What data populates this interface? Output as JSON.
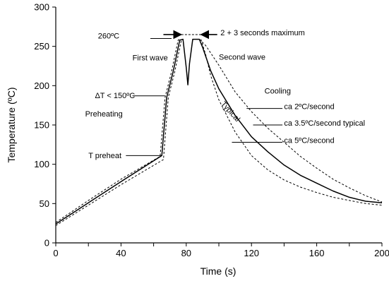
{
  "chart_data": {
    "type": "line",
    "title": "",
    "xlabel": "Time (s)",
    "ylabel": "Temperature (ºC)",
    "xlim": [
      0,
      200
    ],
    "ylim": [
      0,
      300
    ],
    "x_ticks": [
      0,
      40,
      80,
      120,
      160,
      200
    ],
    "y_ticks": [
      0,
      50,
      100,
      150,
      200,
      250,
      300
    ],
    "grid": false,
    "legend": "none",
    "series": [
      {
        "style": "solid",
        "color": "#000000",
        "points": [
          [
            0,
            24
          ],
          [
            20,
            51
          ],
          [
            40,
            78
          ],
          [
            65,
            111
          ],
          [
            68,
            185
          ],
          [
            72,
            218
          ],
          [
            76,
            258
          ],
          [
            78,
            259
          ],
          [
            80,
            223
          ],
          [
            81,
            201
          ],
          [
            82,
            228
          ],
          [
            84,
            259
          ],
          [
            88,
            259
          ],
          [
            90,
            249
          ],
          [
            95,
            219
          ],
          [
            100,
            196
          ],
          [
            110,
            162
          ],
          [
            120,
            135
          ],
          [
            130,
            116
          ],
          [
            140,
            99
          ],
          [
            150,
            86
          ],
          [
            160,
            76
          ],
          [
            170,
            66
          ],
          [
            180,
            58
          ],
          [
            190,
            53
          ],
          [
            200,
            51
          ]
        ]
      },
      {
        "style": "dashed",
        "color": "#000000",
        "points": [
          [
            0,
            26
          ],
          [
            20,
            54
          ],
          [
            40,
            81
          ],
          [
            64,
            110
          ],
          [
            67,
            185
          ],
          [
            71,
            218
          ],
          [
            75,
            258
          ],
          [
            76,
            259
          ]
        ]
      },
      {
        "style": "dashed",
        "color": "#000000",
        "points": [
          [
            0,
            22
          ],
          [
            20,
            48
          ],
          [
            40,
            74
          ],
          [
            66,
            106
          ],
          [
            69,
            185
          ],
          [
            73,
            218
          ],
          [
            77,
            258
          ],
          [
            78,
            259
          ]
        ]
      },
      {
        "style": "dashed",
        "color": "#000000",
        "points": [
          [
            89,
            259
          ],
          [
            92,
            239
          ],
          [
            95,
            213
          ],
          [
            100,
            182
          ],
          [
            110,
            141
          ],
          [
            120,
            111
          ],
          [
            130,
            93
          ],
          [
            140,
            80
          ],
          [
            150,
            71
          ],
          [
            160,
            64
          ],
          [
            170,
            58
          ],
          [
            180,
            54
          ],
          [
            190,
            50
          ],
          [
            200,
            48
          ]
        ]
      },
      {
        "style": "dashed",
        "color": "#000000",
        "points": [
          [
            88,
            259
          ],
          [
            92,
            251
          ],
          [
            100,
            226
          ],
          [
            110,
            192
          ],
          [
            120,
            167
          ],
          [
            130,
            146
          ],
          [
            140,
            128
          ],
          [
            150,
            110
          ],
          [
            160,
            95
          ],
          [
            170,
            81
          ],
          [
            180,
            70
          ],
          [
            190,
            60
          ],
          [
            200,
            52
          ]
        ]
      }
    ],
    "annotations": [
      {
        "text": "260ºC",
        "x": 39,
        "y": 260,
        "anchor": "end"
      },
      {
        "text": "2 + 3 seconds maximum",
        "x": 101,
        "y": 264,
        "anchor": "start"
      },
      {
        "text": "First wave",
        "x": 47,
        "y": 232,
        "anchor": "start"
      },
      {
        "text": "Second wave",
        "x": 100,
        "y": 233,
        "anchor": "start"
      },
      {
        "text": "ΔT < 150ºC",
        "x": 24,
        "y": 184,
        "anchor": "start"
      },
      {
        "text": "Preheating",
        "x": 18,
        "y": 161,
        "anchor": "start"
      },
      {
        "text": "Cooling",
        "x": 128,
        "y": 190,
        "anchor": "start"
      },
      {
        "text": "ca 2ºC/second",
        "x": 140,
        "y": 170,
        "anchor": "start"
      },
      {
        "text": "ca 3.5ºC/second typical",
        "x": 140,
        "y": 149,
        "anchor": "start"
      },
      {
        "text": "ca 5ºC/second",
        "x": 140,
        "y": 127,
        "anchor": "start"
      },
      {
        "text": "T preheat",
        "x": 20,
        "y": 108,
        "anchor": "start"
      },
      {
        "text": "Typical",
        "x": 106,
        "y": 165,
        "anchor": "middle",
        "rotate": 48
      }
    ],
    "leaders": [
      [
        [
          58,
          260
        ],
        [
          71,
          260
        ]
      ],
      [
        [
          47,
          187
        ],
        [
          67,
          187
        ]
      ],
      [
        [
          43,
          111
        ],
        [
          65,
          111
        ]
      ],
      [
        [
          139,
          171
        ],
        [
          117,
          171
        ]
      ],
      [
        [
          139,
          150
        ],
        [
          121,
          150
        ]
      ],
      [
        [
          139,
          128
        ],
        [
          108,
          128
        ]
      ]
    ],
    "bracket_lines": [
      [
        [
          77,
          265
        ],
        [
          89,
          265
        ]
      ]
    ],
    "arrows": [
      {
        "from": [
          66,
          265
        ],
        "to": [
          77,
          265
        ]
      },
      {
        "from": [
          99,
          265
        ],
        "to": [
          89,
          265
        ]
      }
    ]
  }
}
